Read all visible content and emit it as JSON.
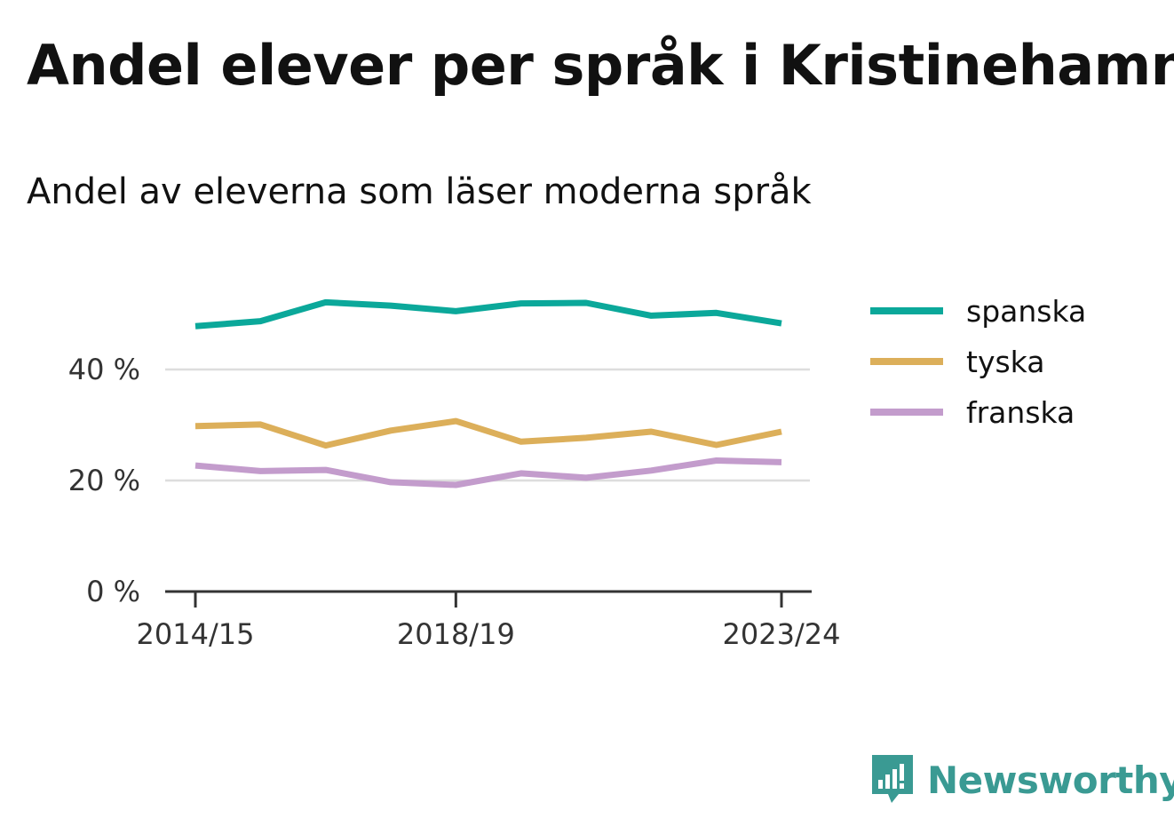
{
  "title": "Andel elever per språk i Kristinehamn",
  "subtitle": "Andel av eleverna som läser moderna språk",
  "brand": {
    "name": "Newsworthy",
    "icon": "newsworthy-logo-icon"
  },
  "colors": {
    "spanska": "#0ba89a",
    "tyska": "#dcaf5a",
    "franska": "#c39ccc",
    "axis": "#333333",
    "grid": "#dddddd"
  },
  "chart_data": {
    "type": "line",
    "x": [
      "2014/15",
      "2015/16",
      "2016/17",
      "2017/18",
      "2018/19",
      "2019/20",
      "2020/21",
      "2021/22",
      "2022/23",
      "2023/24"
    ],
    "x_tick_labels": [
      "2014/15",
      "2018/19",
      "2023/24"
    ],
    "y_ticks": [
      0,
      20,
      40
    ],
    "y_tick_labels": [
      "0 %",
      "20 %",
      "40 %"
    ],
    "ylim": [
      0,
      60
    ],
    "grid": true,
    "legend": "right",
    "series": [
      {
        "name": "spanska",
        "color": "#0ba89a",
        "values": [
          47.8,
          48.7,
          52.1,
          51.5,
          50.5,
          51.9,
          52.0,
          49.7,
          50.2,
          48.3
        ]
      },
      {
        "name": "tyska",
        "color": "#dcaf5a",
        "values": [
          29.8,
          30.1,
          26.3,
          29.0,
          30.7,
          27.0,
          27.7,
          28.8,
          26.4,
          28.8
        ]
      },
      {
        "name": "franska",
        "color": "#c39ccc",
        "values": [
          22.7,
          21.7,
          21.9,
          19.7,
          19.2,
          21.3,
          20.5,
          21.8,
          23.6,
          23.3
        ]
      }
    ]
  }
}
